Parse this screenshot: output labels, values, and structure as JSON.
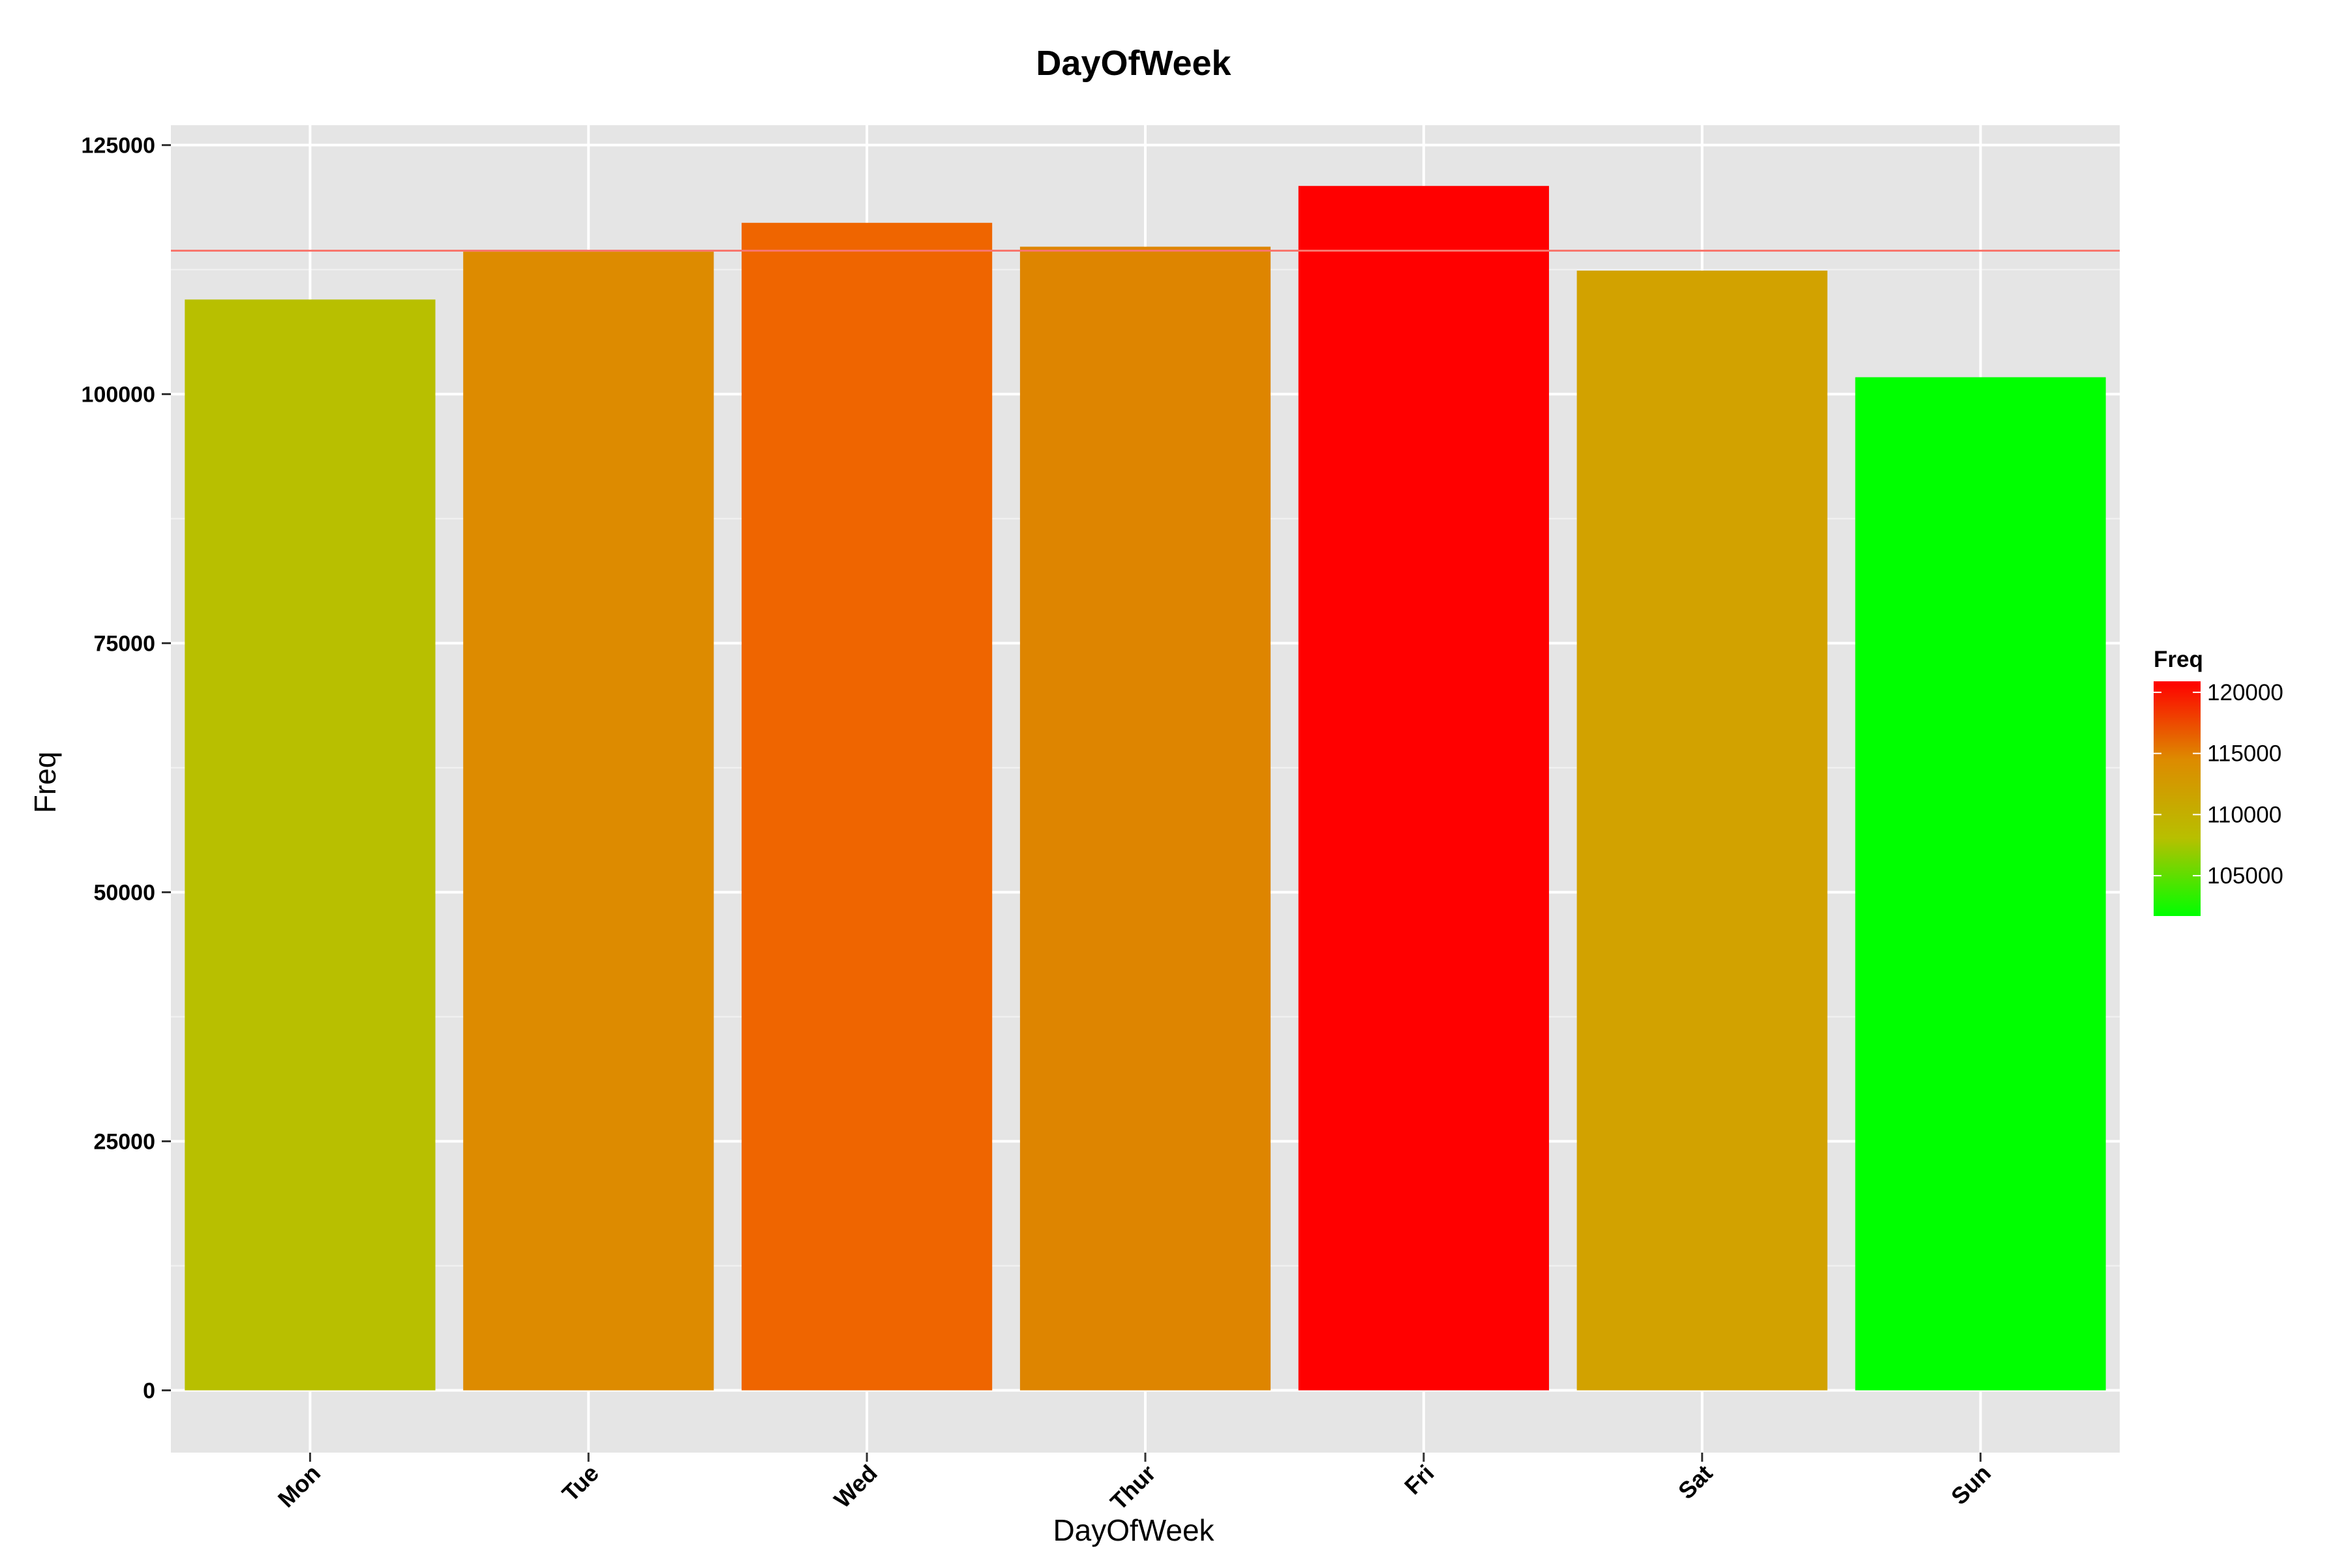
{
  "chart_data": {
    "type": "bar",
    "title": "DayOfWeek",
    "xlabel": "DayOfWeek",
    "ylabel": "Freq",
    "categories": [
      "Mon",
      "Tue",
      "Wed",
      "Thur",
      "Fri",
      "Sat",
      "Sun"
    ],
    "values": [
      109500,
      114300,
      117200,
      114800,
      120900,
      112400,
      101700
    ],
    "bar_colors": [
      "#b8bf00",
      "#dd8b00",
      "#ef6500",
      "#de8500",
      "#ff0000",
      "#d2a200",
      "#00ff00"
    ],
    "ylim": [
      -6250,
      127000
    ],
    "yticks": [
      0,
      25000,
      50000,
      75000,
      100000,
      125000
    ],
    "ytick_labels": [
      "0",
      "25000",
      "50000",
      "75000",
      "100000",
      "125000"
    ],
    "reference_line": {
      "value": 114400,
      "color": "#f8766d"
    },
    "grid": true,
    "panel_background": "#e5e5e5",
    "legend": {
      "title": "Freq",
      "placement": "right",
      "labels": [
        "120000",
        "115000",
        "110000",
        "105000"
      ],
      "values": [
        120000,
        115000,
        110000,
        105000
      ],
      "range": [
        101700,
        120900
      ],
      "gradient": [
        "#00ff00",
        "#b8bf00",
        "#dd8b00",
        "#ff0000"
      ]
    }
  }
}
